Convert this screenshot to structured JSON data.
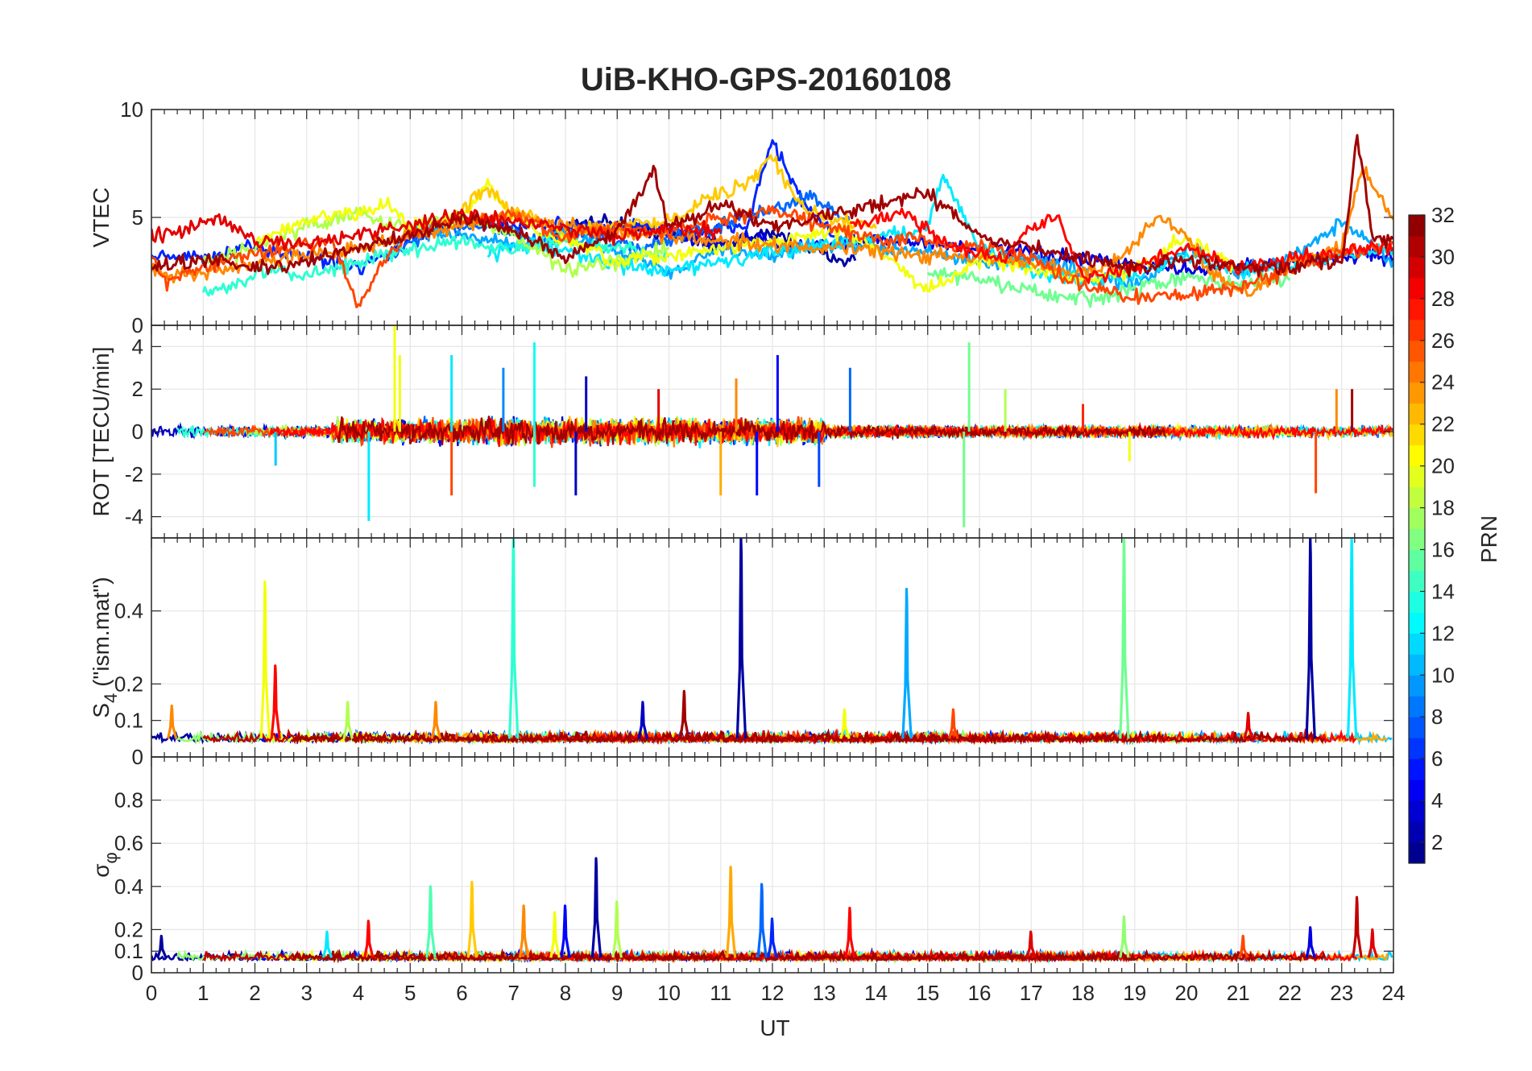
{
  "title": "UiB-KHO-GPS-20160108",
  "chart_data": {
    "type": "line",
    "title": "UiB-KHO-GPS-20160108",
    "xlabel": "UT",
    "xlim": [
      0,
      24
    ],
    "xticks": [
      0,
      1,
      2,
      3,
      4,
      5,
      6,
      7,
      8,
      9,
      10,
      11,
      12,
      13,
      14,
      15,
      16,
      17,
      18,
      19,
      20,
      21,
      22,
      23,
      24
    ],
    "grid": true,
    "colorbar": {
      "label": "PRN",
      "range": [
        1,
        32
      ],
      "ticks": [
        2,
        4,
        6,
        8,
        10,
        12,
        14,
        16,
        18,
        20,
        22,
        24,
        26,
        28,
        30,
        32
      ],
      "colormap": "jet"
    },
    "panels": [
      {
        "ylabel": "VTEC",
        "ylim": [
          0,
          10
        ],
        "yticks": [
          0,
          5,
          10
        ],
        "series": [
          {
            "prn": 2,
            "x": [
              7.8,
              8.5,
              9.3,
              10.2,
              11.2,
              12.0,
              13.0,
              13.6
            ],
            "y": [
              4.3,
              4.9,
              4.6,
              4.1,
              3.8,
              4.3,
              3.3,
              3.0
            ]
          },
          {
            "prn": 4,
            "x": [
              10.2,
              11.0,
              11.6,
              12.3,
              13.0,
              14.0,
              15.2,
              17.0,
              18.5,
              20.0,
              21.5,
              22.5,
              23.5,
              24.0
            ],
            "y": [
              4.2,
              3.6,
              4.0,
              3.8,
              3.7,
              4.0,
              3.8,
              3.3,
              2.9,
              2.6,
              2.8,
              3.0,
              3.3,
              3.1
            ]
          },
          {
            "prn": 6,
            "x": [
              0.0,
              1.0,
              2.0,
              3.0,
              4.0,
              5.0,
              5.6,
              9.5,
              10.5,
              11.5,
              12.0,
              12.6,
              13.2
            ],
            "y": [
              3.3,
              3.1,
              3.6,
              3.2,
              2.7,
              3.9,
              4.7,
              4.6,
              4.3,
              4.6,
              8.6,
              5.6,
              4.1
            ]
          },
          {
            "prn": 8,
            "x": [
              4.5,
              5.5,
              6.5,
              7.5,
              8.5,
              9.5,
              10.5,
              11.5,
              12.3,
              12.8,
              13.5
            ],
            "y": [
              3.1,
              4.4,
              4.7,
              3.9,
              4.1,
              3.6,
              4.3,
              5.0,
              5.6,
              6.0,
              4.6
            ]
          },
          {
            "prn": 10,
            "x": [
              5.0,
              6.0,
              7.0,
              8.0,
              8.8,
              9.5,
              10.0,
              11.0,
              12.0,
              13.0,
              14.0,
              15.0,
              16.0,
              17.0,
              18.0,
              19.0,
              20.0,
              21.0,
              22.0,
              23.0,
              24.0
            ],
            "y": [
              4.5,
              4.1,
              3.7,
              4.3,
              3.6,
              3.0,
              2.5,
              3.5,
              3.3,
              3.8,
              3.6,
              3.4,
              2.9,
              3.1,
              2.5,
              1.8,
              3.6,
              2.4,
              3.1,
              4.8,
              3.0
            ]
          },
          {
            "prn": 12,
            "x": [
              6.5,
              7.0,
              7.4,
              8.0,
              8.8,
              9.6,
              10.1,
              15.0,
              15.3,
              16.0,
              17.0,
              18.0,
              19.0,
              20.0,
              21.0,
              22.0,
              23.0,
              24.0
            ],
            "y": [
              3.3,
              3.7,
              3.8,
              3.4,
              2.9,
              2.6,
              2.6,
              4.5,
              7.0,
              3.6,
              2.5,
              2.1,
              2.3,
              3.2,
              2.5,
              2.8,
              3.2,
              3.5
            ]
          },
          {
            "prn": 14,
            "x": [
              1.0,
              1.6,
              2.2,
              3.0,
              3.5,
              4.0,
              5.0,
              6.0,
              7.0,
              8.0,
              9.0,
              10.0
            ],
            "y": [
              1.5,
              1.9,
              2.5,
              2.3,
              2.7,
              2.9,
              3.5,
              4.0,
              3.5,
              3.9,
              3.6,
              3.2
            ]
          },
          {
            "prn": 16,
            "x": [
              15.0,
              16.0,
              17.0,
              17.5,
              18.0,
              18.5,
              19.0,
              20.0,
              21.0,
              22.0
            ],
            "y": [
              2.5,
              2.1,
              1.6,
              1.3,
              1.2,
              1.3,
              1.7,
              2.2,
              1.9,
              2.1
            ]
          },
          {
            "prn": 18,
            "x": [
              1.0,
              2.0,
              3.0,
              4.0,
              5.0,
              5.5,
              6.0,
              7.0,
              8.0,
              9.0,
              10.0
            ],
            "y": [
              3.0,
              3.6,
              4.6,
              5.2,
              4.5,
              4.8,
              5.1,
              4.2,
              2.6,
              2.9,
              3.6
            ]
          },
          {
            "prn": 20,
            "x": [
              2.0,
              3.0,
              4.0,
              4.5,
              5.0,
              6.0,
              6.5,
              7.0,
              8.0,
              9.0,
              13.5,
              14.5,
              15.0,
              16.0,
              17.0,
              18.0,
              19.0,
              20.0,
              21.0
            ],
            "y": [
              3.8,
              4.9,
              5.2,
              5.7,
              4.6,
              4.9,
              6.6,
              4.9,
              3.9,
              2.9,
              4.4,
              2.6,
              1.6,
              3.1,
              2.6,
              2.1,
              2.6,
              4.1,
              2.6
            ]
          },
          {
            "prn": 22,
            "x": [
              6.0,
              6.5,
              7.0,
              8.0,
              9.0,
              10.0,
              10.5,
              11.0,
              11.5,
              12.0,
              12.5,
              13.0,
              14.0
            ],
            "y": [
              5.5,
              6.2,
              5.4,
              4.3,
              4.6,
              4.9,
              5.6,
              6.1,
              6.6,
              7.8,
              5.6,
              5.0,
              4.5
            ]
          },
          {
            "prn": 24,
            "x": [
              0.0,
              0.5,
              1.0,
              2.0,
              3.0,
              4.0,
              5.0,
              6.0,
              7.0,
              8.0,
              9.0,
              10.0,
              17.0,
              18.0,
              18.5,
              19.0,
              19.5,
              20.0,
              20.5,
              21.0,
              21.5,
              22.0,
              23.0,
              23.4,
              24.0
            ],
            "y": [
              2.6,
              2.3,
              2.4,
              2.9,
              3.3,
              3.6,
              4.1,
              4.6,
              5.1,
              4.6,
              4.3,
              4.1,
              2.9,
              2.4,
              2.7,
              3.9,
              5.1,
              4.1,
              2.4,
              1.6,
              1.8,
              2.9,
              3.6,
              7.3,
              4.9
            ]
          },
          {
            "prn": 26,
            "x": [
              0.0,
              0.3,
              0.8,
              1.5,
              2.0,
              2.8,
              3.5,
              4.0,
              4.6,
              5.0,
              5.5,
              6.0,
              7.0,
              8.0,
              9.0,
              10.0,
              11.0,
              12.0,
              13.0,
              14.0,
              15.0,
              16.0,
              17.0,
              18.0,
              19.0,
              20.0,
              21.0,
              22.0,
              23.0,
              24.0
            ],
            "y": [
              3.1,
              2.0,
              2.6,
              3.1,
              3.3,
              3.7,
              3.9,
              0.9,
              3.3,
              4.3,
              4.6,
              4.9,
              5.1,
              4.1,
              4.6,
              4.3,
              4.9,
              5.3,
              4.6,
              4.0,
              3.9,
              3.6,
              3.1,
              1.8,
              1.3,
              1.4,
              1.8,
              2.6,
              3.3,
              3.8
            ]
          },
          {
            "prn": 28,
            "x": [
              13.5,
              14.5,
              15.5,
              16.5,
              17.0,
              17.5,
              18.0,
              19.0,
              20.0,
              21.0,
              22.0,
              23.0,
              23.5,
              24.0
            ],
            "y": [
              4.6,
              5.3,
              3.6,
              3.1,
              4.6,
              5.0,
              2.3,
              2.6,
              3.6,
              2.6,
              3.1,
              3.3,
              3.6,
              3.6
            ]
          },
          {
            "prn": 29,
            "x": [
              0.0,
              0.8,
              1.2,
              2.0,
              3.0,
              4.0,
              5.0,
              6.0,
              7.0,
              8.0,
              9.0,
              10.0,
              11.0
            ],
            "y": [
              4.1,
              4.6,
              5.1,
              4.0,
              3.7,
              4.3,
              4.6,
              5.1,
              4.8,
              4.5,
              4.1,
              4.6,
              4.3
            ]
          },
          {
            "prn": 31,
            "x": [
              0.0,
              1.0,
              2.0,
              3.0,
              4.0,
              5.0,
              6.0,
              7.0,
              8.0,
              9.0,
              9.7,
              10.0,
              11.0,
              12.0,
              13.0,
              14.0,
              15.0,
              16.0,
              17.0,
              18.0,
              19.0,
              20.0,
              21.0,
              22.0,
              22.5,
              23.0,
              23.3,
              23.6,
              24.0
            ],
            "y": [
              2.6,
              3.1,
              2.6,
              3.0,
              3.6,
              4.1,
              5.0,
              4.3,
              3.1,
              4.3,
              7.2,
              4.6,
              5.6,
              4.6,
              5.1,
              5.6,
              6.1,
              4.1,
              3.6,
              3.1,
              2.6,
              3.1,
              2.8,
              2.6,
              3.0,
              2.8,
              8.8,
              4.1,
              4.0
            ]
          }
        ]
      },
      {
        "ylabel": "ROT [TECU/min]",
        "ylim": [
          -5,
          5
        ],
        "yticks": [
          -4,
          -2,
          0,
          2,
          4
        ],
        "spikes": [
          {
            "prn": 3,
            "x": 8.2,
            "y": -3.0
          },
          {
            "prn": 3,
            "x": 8.4,
            "y": 2.6
          },
          {
            "prn": 5,
            "x": 11.7,
            "y": -3.0
          },
          {
            "prn": 5,
            "x": 12.1,
            "y": 3.6
          },
          {
            "prn": 8,
            "x": 13.5,
            "y": 3.0
          },
          {
            "prn": 9,
            "x": 6.8,
            "y": 3.0
          },
          {
            "prn": 12,
            "x": 4.2,
            "y": -4.2
          },
          {
            "prn": 12,
            "x": 5.8,
            "y": 3.6
          },
          {
            "prn": 13,
            "x": 7.4,
            "y": 4.2
          },
          {
            "prn": 14,
            "x": 7.4,
            "y": -2.6
          },
          {
            "prn": 16,
            "x": 15.8,
            "y": 4.2
          },
          {
            "prn": 16,
            "x": 15.7,
            "y": -4.5
          },
          {
            "prn": 20,
            "x": 4.7,
            "y": 5.1
          },
          {
            "prn": 20,
            "x": 4.8,
            "y": 3.6
          },
          {
            "prn": 20,
            "x": 18.9,
            "y": -1.4
          },
          {
            "prn": 23,
            "x": 11.0,
            "y": -3.0
          },
          {
            "prn": 24,
            "x": 11.3,
            "y": 2.5
          },
          {
            "prn": 24,
            "x": 22.9,
            "y": 2.0
          },
          {
            "prn": 26,
            "x": 5.8,
            "y": -3.0
          },
          {
            "prn": 26,
            "x": 22.5,
            "y": -2.9
          },
          {
            "prn": 29,
            "x": 9.8,
            "y": 2.0
          },
          {
            "prn": 31,
            "x": 23.2,
            "y": 2.0
          },
          {
            "prn": 7,
            "x": 12.9,
            "y": -2.6
          },
          {
            "prn": 11,
            "x": 2.4,
            "y": -1.6
          },
          {
            "prn": 18,
            "x": 16.5,
            "y": 2.0
          },
          {
            "prn": 27,
            "x": 18.0,
            "y": 1.3
          }
        ]
      },
      {
        "ylabel": "S4 (\"ism.mat\")",
        "ylabel_main": "S",
        "ylabel_sub": "4",
        "ylabel_rest": " (\"ism.mat\")",
        "ylim": [
          0,
          0.6
        ],
        "yticks": [
          0,
          0.1,
          0.2,
          0.4
        ],
        "baseline": 0.05,
        "spikes": [
          {
            "prn": 20,
            "x": 2.2,
            "y": 0.48
          },
          {
            "prn": 28,
            "x": 2.4,
            "y": 0.25
          },
          {
            "prn": 14,
            "x": 7.0,
            "y": 0.6
          },
          {
            "prn": 2,
            "x": 11.4,
            "y": 0.6
          },
          {
            "prn": 10,
            "x": 14.6,
            "y": 0.46
          },
          {
            "prn": 16,
            "x": 18.8,
            "y": 0.6
          },
          {
            "prn": 2,
            "x": 22.4,
            "y": 0.6
          },
          {
            "prn": 12,
            "x": 23.2,
            "y": 0.6
          },
          {
            "prn": 31,
            "x": 10.3,
            "y": 0.18
          },
          {
            "prn": 3,
            "x": 9.5,
            "y": 0.15
          },
          {
            "prn": 24,
            "x": 0.4,
            "y": 0.14
          },
          {
            "prn": 29,
            "x": 21.2,
            "y": 0.12
          },
          {
            "prn": 20,
            "x": 13.4,
            "y": 0.13
          },
          {
            "prn": 18,
            "x": 3.8,
            "y": 0.15
          },
          {
            "prn": 24,
            "x": 5.5,
            "y": 0.15
          },
          {
            "prn": 26,
            "x": 15.5,
            "y": 0.13
          }
        ]
      },
      {
        "ylabel": "σφ",
        "ylabel_main": "σ",
        "ylabel_sub": "φ",
        "ylim": [
          0,
          1
        ],
        "yticks": [
          0,
          0.1,
          0.2,
          0.4,
          0.6,
          0.8
        ],
        "baseline": 0.07,
        "spikes": [
          {
            "prn": 2,
            "x": 8.6,
            "y": 0.53
          },
          {
            "prn": 23,
            "x": 11.2,
            "y": 0.49
          },
          {
            "prn": 22,
            "x": 6.2,
            "y": 0.42
          },
          {
            "prn": 15,
            "x": 5.4,
            "y": 0.4
          },
          {
            "prn": 8,
            "x": 11.8,
            "y": 0.41
          },
          {
            "prn": 5,
            "x": 8.0,
            "y": 0.31
          },
          {
            "prn": 18,
            "x": 9.0,
            "y": 0.33
          },
          {
            "prn": 28,
            "x": 13.5,
            "y": 0.3
          },
          {
            "prn": 30,
            "x": 23.3,
            "y": 0.35
          },
          {
            "prn": 29,
            "x": 23.6,
            "y": 0.2
          },
          {
            "prn": 24,
            "x": 7.2,
            "y": 0.31
          },
          {
            "prn": 20,
            "x": 7.8,
            "y": 0.28
          },
          {
            "prn": 6,
            "x": 12.0,
            "y": 0.25
          },
          {
            "prn": 28,
            "x": 4.2,
            "y": 0.24
          },
          {
            "prn": 4,
            "x": 22.4,
            "y": 0.21
          },
          {
            "prn": 17,
            "x": 18.8,
            "y": 0.26
          },
          {
            "prn": 29,
            "x": 17.0,
            "y": 0.19
          },
          {
            "prn": 12,
            "x": 3.4,
            "y": 0.19
          },
          {
            "prn": 2,
            "x": 0.2,
            "y": 0.17
          },
          {
            "prn": 26,
            "x": 21.1,
            "y": 0.17
          }
        ]
      }
    ]
  }
}
